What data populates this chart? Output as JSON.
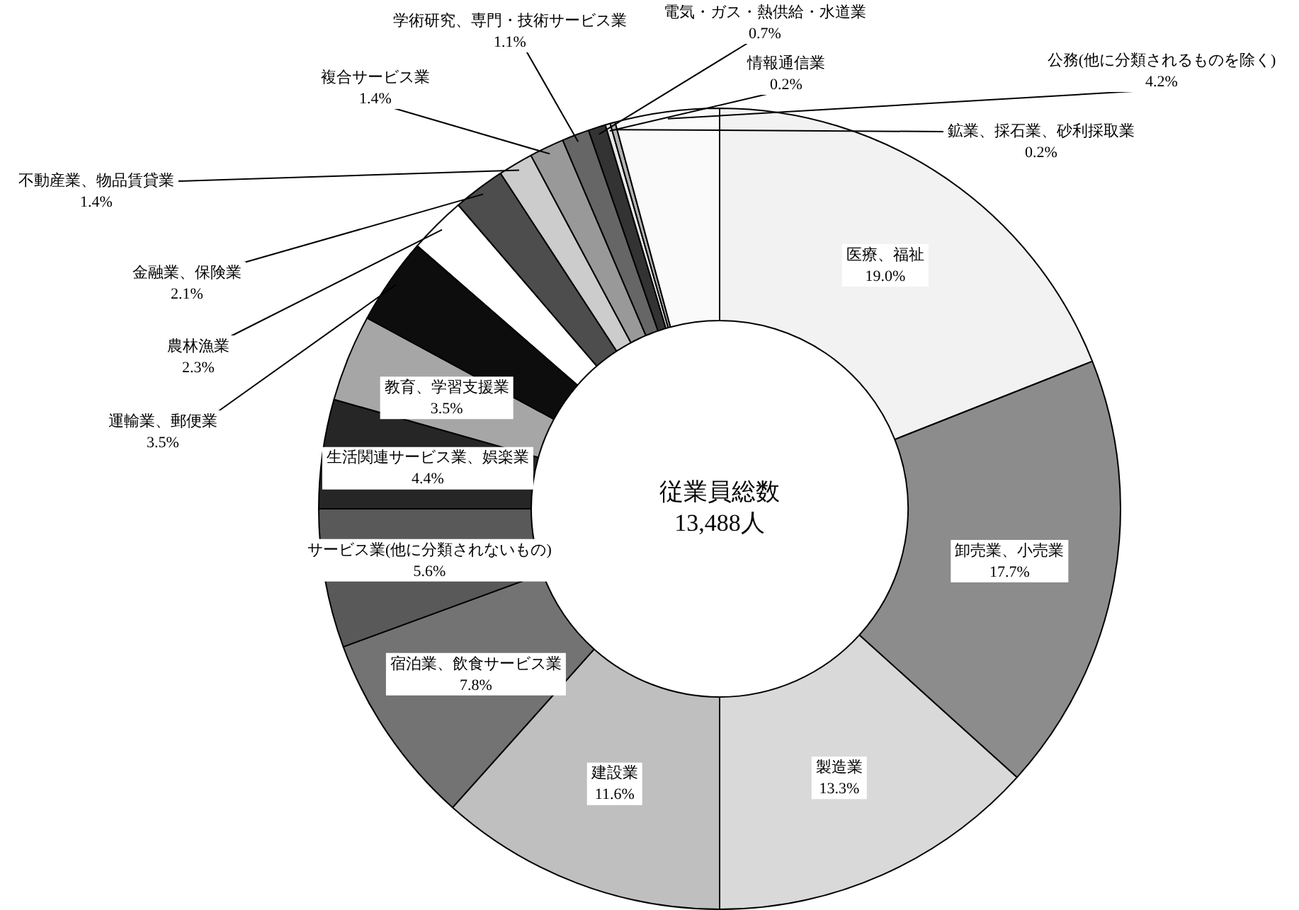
{
  "chart_data": {
    "type": "donut",
    "title": "従業員総数",
    "subtitle": "13,488人",
    "categories": [
      "医療、福祉",
      "卸売業、小売業",
      "製造業",
      "建設業",
      "宿泊業、飲食サービス業",
      "サービス業(他に分類されないもの)",
      "生活関連サービス業、娯楽業",
      "教育、学習支援業",
      "運輸業、郵便業",
      "農林漁業",
      "金融業、保険業",
      "不動産業、物品賃貸業",
      "複合サービス業",
      "学術研究、専門・技術サービス業",
      "電気・ガス・熱供給・水道業",
      "情報通信業",
      "鉱業、採石業、砂利採取業",
      "公務(他に分類されるものを除く)"
    ],
    "values": [
      19.0,
      17.7,
      13.3,
      11.6,
      7.8,
      5.6,
      4.4,
      3.5,
      3.5,
      2.3,
      2.1,
      1.4,
      1.4,
      1.1,
      0.7,
      0.2,
      0.2,
      4.2
    ],
    "value_labels": [
      "19.0%",
      "17.7%",
      "13.3%",
      "11.6%",
      "7.8%",
      "5.6%",
      "4.4%",
      "3.5%",
      "3.5%",
      "2.3%",
      "2.1%",
      "1.4%",
      "1.4%",
      "1.1%",
      "0.7%",
      "0.2%",
      "0.2%",
      "4.2%"
    ],
    "colors": [
      "#f2f2f2",
      "#8c8c8c",
      "#d9d9d9",
      "#bfbfbf",
      "#737373",
      "#595959",
      "#262626",
      "#a6a6a6",
      "#0d0d0d",
      "#ffffff",
      "#4d4d4d",
      "#cccccc",
      "#999999",
      "#666666",
      "#333333",
      "#e6e6e6",
      "#b3b3b3",
      "#fafafa"
    ],
    "legend": false
  }
}
